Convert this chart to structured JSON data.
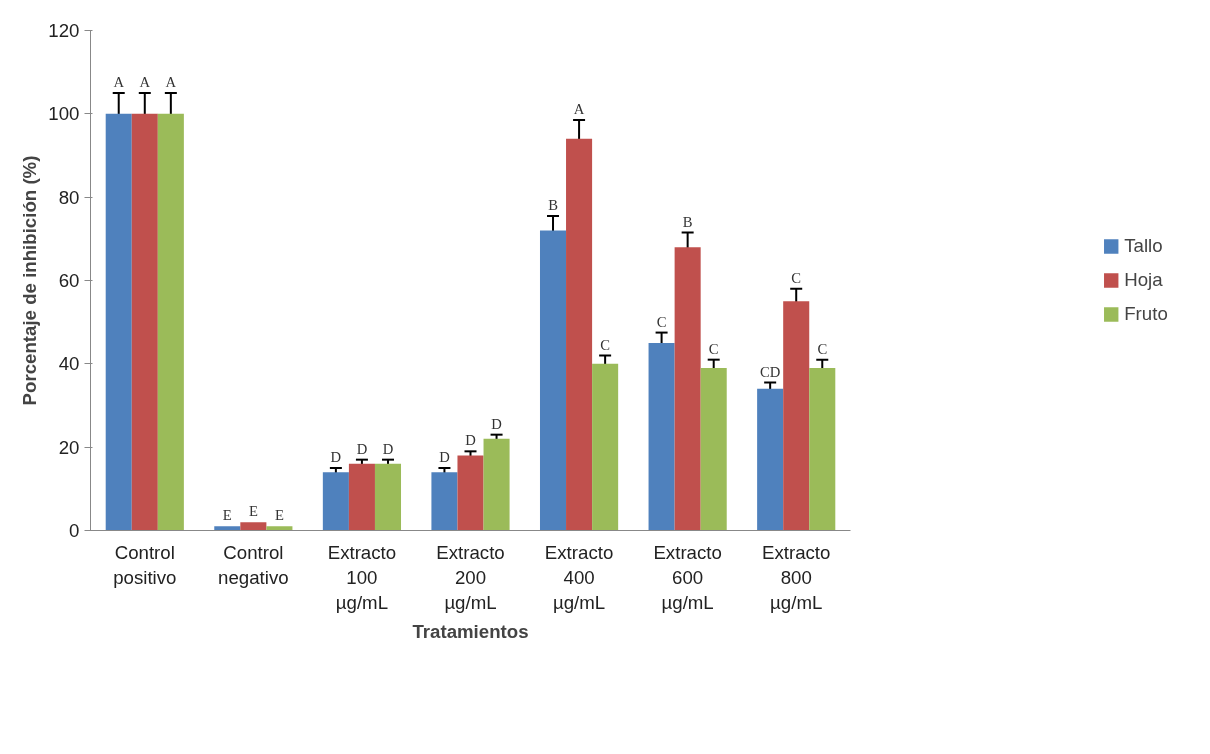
{
  "chart_data": {
    "type": "bar",
    "xlabel": "Tratamientos",
    "ylabel": "Porcentaje de inhibición (%)",
    "categories": [
      "Control positivo",
      "Control negativo",
      "Extracto 100 µg/mL",
      "Extracto 200 µg/mL",
      "Extracto 400 µg/mL",
      "Extracto 600 µg/mL",
      "Extracto 800 µg/mL"
    ],
    "series": [
      {
        "name": "Tallo",
        "color": "#4f81bd",
        "values": [
          100,
          1,
          14,
          14,
          72,
          45,
          34
        ],
        "errors": [
          5,
          null,
          1,
          1,
          3.5,
          2.5,
          1.5
        ],
        "value_labels": [
          "A",
          "E",
          "D",
          "D",
          "B",
          "C",
          "CD"
        ]
      },
      {
        "name": "Hoja",
        "color": "#c0504d",
        "values": [
          100,
          2,
          16,
          18,
          94,
          68,
          55
        ],
        "errors": [
          5,
          null,
          1,
          1,
          4.5,
          3.5,
          3
        ],
        "value_labels": [
          "A",
          "E",
          "D",
          "D",
          "A",
          "B",
          "C"
        ]
      },
      {
        "name": "Fruto",
        "color": "#9bbb59",
        "values": [
          100,
          1,
          16,
          22,
          40,
          39,
          39
        ],
        "errors": [
          5,
          null,
          1,
          1,
          2,
          2,
          2
        ],
        "value_labels": [
          "A",
          "E",
          "D",
          "D",
          "C",
          "C",
          "C"
        ]
      }
    ],
    "ylim": [
      0,
      120
    ],
    "yticks": [
      0,
      20,
      40,
      60,
      80,
      100,
      120
    ],
    "grid": false,
    "legend": "right"
  }
}
